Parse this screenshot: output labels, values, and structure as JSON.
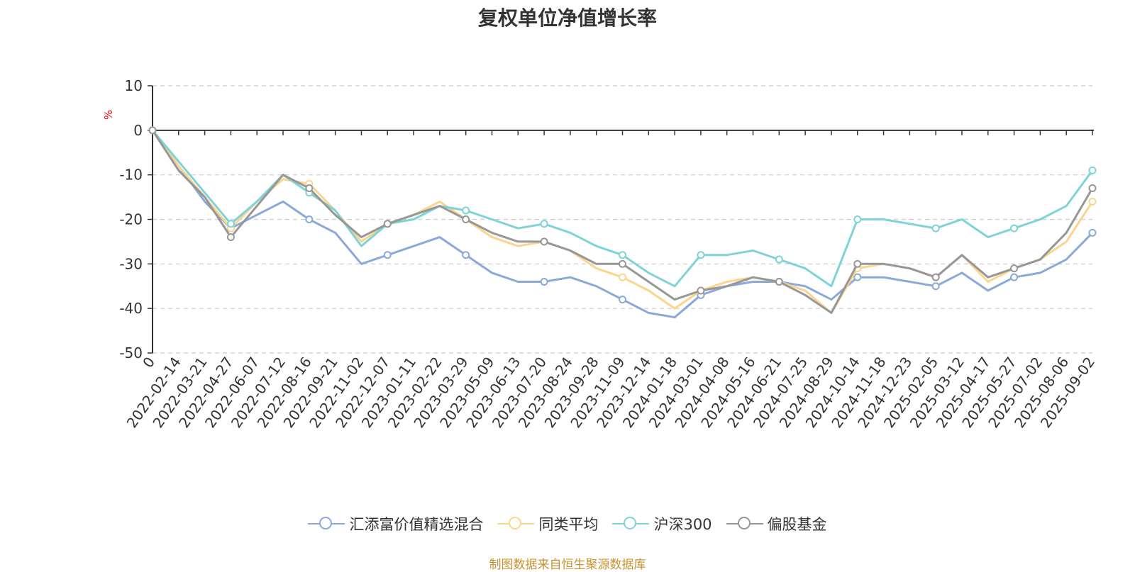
{
  "chart_data": {
    "type": "line",
    "title": "复权单位净值增长率",
    "ylabel": "%",
    "ylim": [
      -50,
      10
    ],
    "yticks": [
      10,
      0,
      -10,
      -20,
      -30,
      -40,
      -50
    ],
    "grid": true,
    "legend_position": "bottom-center",
    "x": [
      "0",
      "2022-02-14",
      "2022-03-21",
      "2022-04-27",
      "2022-06-07",
      "2022-07-12",
      "2022-08-16",
      "2022-09-21",
      "2022-11-02",
      "2022-12-07",
      "2023-01-11",
      "2023-02-22",
      "2023-03-29",
      "2023-05-09",
      "2023-06-13",
      "2023-07-20",
      "2023-08-24",
      "2023-09-28",
      "2023-11-09",
      "2023-12-14",
      "2024-01-18",
      "2024-03-01",
      "2024-04-08",
      "2024-05-16",
      "2024-06-21",
      "2024-07-25",
      "2024-08-29",
      "2024-10-14",
      "2024-11-18",
      "2024-12-23",
      "2025-02-05",
      "2025-03-12",
      "2025-04-17",
      "2025-05-27",
      "2025-07-02",
      "2025-08-06",
      "2025-09-02"
    ],
    "series": [
      {
        "name": "汇添富价值精选混合",
        "color": "#8aa9d9",
        "values": [
          0,
          -8,
          -16,
          -22,
          -19,
          -16,
          -20,
          -23,
          -30,
          -28,
          -26,
          -24,
          -28,
          -32,
          -34,
          -34,
          -33,
          -35,
          -38,
          -41,
          -42,
          -37,
          -35,
          -34,
          -34,
          -35,
          -38,
          -33,
          -33,
          -34,
          -35,
          -32,
          -36,
          -33,
          -32,
          -29,
          -23
        ]
      },
      {
        "name": "同类平均",
        "color": "#fbd58e",
        "values": [
          0,
          -8,
          -15,
          -22,
          -16,
          -11,
          -12,
          -18,
          -25,
          -21,
          -19,
          -16,
          -20,
          -24,
          -26,
          -25,
          -27,
          -31,
          -33,
          -36,
          -40,
          -36,
          -34,
          -33,
          -34,
          -36,
          -41,
          -31,
          -30,
          -31,
          -33,
          -28,
          -34,
          -31,
          -29,
          -25,
          -16
        ]
      },
      {
        "name": "沪深300",
        "color": "#7fd3d6",
        "values": [
          0,
          -7,
          -14,
          -21,
          -16,
          -10,
          -14,
          -18,
          -26,
          -21,
          -20,
          -17,
          -18,
          -20,
          -22,
          -21,
          -23,
          -26,
          -28,
          -32,
          -35,
          -28,
          -28,
          -27,
          -29,
          -31,
          -35,
          -20,
          -20,
          -21,
          -22,
          -20,
          -24,
          -22,
          -20,
          -17,
          -9
        ]
      },
      {
        "name": "偏股基金",
        "color": "#979797",
        "values": [
          0,
          -9,
          -15,
          -24,
          -17,
          -10,
          -13,
          -19,
          -24,
          -21,
          -19,
          -17,
          -20,
          -23,
          -25,
          -25,
          -27,
          -30,
          -30,
          -34,
          -38,
          -36,
          -35,
          -33,
          -34,
          -37,
          -41,
          -30,
          -30,
          -31,
          -33,
          -28,
          -33,
          -31,
          -29,
          -23,
          -13
        ]
      }
    ]
  },
  "source_note": "制图数据来自恒生聚源数据库"
}
